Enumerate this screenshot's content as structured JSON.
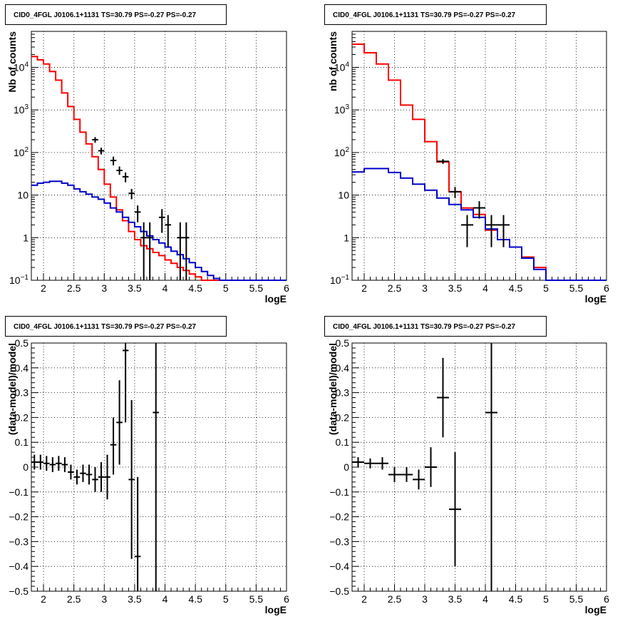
{
  "chart_data": [
    {
      "type": "line",
      "title": "CID0_4FGL J0106.1+1131 TS=30.79 PS=-0.27 PS=-0.27",
      "xlabel": "logE",
      "ylabel": "Nb of counts",
      "xlim": [
        1.8,
        6
      ],
      "ylim": [
        0.1,
        70000
      ],
      "yscale": "log",
      "grid": true,
      "xticks": [
        "2",
        "2.5",
        "3",
        "3.5",
        "4",
        "4.5",
        "5",
        "5.5",
        "6"
      ],
      "yticks": [
        "10^-1",
        "1",
        "10",
        "10^2",
        "10^3",
        "10^4"
      ],
      "series": [
        {
          "color": "#ff0000",
          "style": "step",
          "edges": [
            1.8,
            1.9,
            2.0,
            2.1,
            2.2,
            2.3,
            2.4,
            2.5,
            2.6,
            2.7,
            2.8,
            2.9,
            3.0,
            3.1,
            3.2,
            3.3,
            3.4,
            3.5,
            3.6,
            3.7,
            3.8,
            3.9,
            4.0,
            4.1,
            4.2,
            4.3,
            4.4,
            4.5,
            4.6,
            4.7,
            4.8,
            4.9,
            5.0,
            5.1,
            5.2,
            5.3,
            5.4,
            5.5,
            5.6,
            5.7,
            5.8,
            5.9,
            6.0
          ],
          "values": [
            18000,
            15000,
            12000,
            8000,
            5000,
            2500,
            1200,
            600,
            300,
            160,
            80,
            40,
            18,
            9,
            4.5,
            2.5,
            1.4,
            0.9,
            0.65,
            0.55,
            0.45,
            0.38,
            0.3,
            0.25,
            0.2,
            0.17,
            0.14,
            0.12,
            0.1,
            0.1,
            0.1,
            0.1,
            0.1,
            0.1,
            0.1,
            0.1,
            0.1,
            0.1,
            0.1,
            0.1,
            0.1,
            0.1
          ]
        },
        {
          "color": "#0000cc",
          "style": "step",
          "edges": [
            1.8,
            1.9,
            2.0,
            2.1,
            2.2,
            2.3,
            2.4,
            2.5,
            2.6,
            2.7,
            2.8,
            2.9,
            3.0,
            3.1,
            3.2,
            3.3,
            3.4,
            3.5,
            3.6,
            3.7,
            3.8,
            3.9,
            4.0,
            4.1,
            4.2,
            4.3,
            4.4,
            4.5,
            4.6,
            4.7,
            4.8,
            4.9,
            5.0,
            5.1,
            5.2,
            5.3,
            5.4,
            5.5,
            5.6,
            5.7,
            5.8,
            5.9,
            6.0
          ],
          "values": [
            17,
            19,
            20,
            21,
            21,
            19,
            17,
            14,
            12,
            10.5,
            9,
            8,
            6.5,
            5,
            4,
            3,
            2.3,
            1.8,
            1.4,
            1.1,
            0.9,
            0.75,
            0.6,
            0.48,
            0.4,
            0.32,
            0.26,
            0.2,
            0.16,
            0.13,
            0.11,
            0.1,
            0.1,
            0.1,
            0.1,
            0.1,
            0.1,
            0.1,
            0.1,
            0.1,
            0.1,
            0.1
          ]
        },
        {
          "color": "#000000",
          "style": "errorbar",
          "points": [
            {
              "x": 2.85,
              "y": 200,
              "xerr": 0.05,
              "ylo": 170,
              "yhi": 230
            },
            {
              "x": 2.95,
              "y": 110,
              "xerr": 0.05,
              "ylo": 90,
              "yhi": 130
            },
            {
              "x": 3.15,
              "y": 65,
              "xerr": 0.05,
              "ylo": 50,
              "yhi": 80
            },
            {
              "x": 3.25,
              "y": 38,
              "xerr": 0.05,
              "ylo": 30,
              "yhi": 47
            },
            {
              "x": 3.35,
              "y": 27,
              "xerr": 0.05,
              "ylo": 20,
              "yhi": 34
            },
            {
              "x": 3.45,
              "y": 11,
              "xerr": 0.05,
              "ylo": 8,
              "yhi": 14
            },
            {
              "x": 3.55,
              "y": 4,
              "xerr": 0.05,
              "ylo": 2.3,
              "yhi": 5.7
            },
            {
              "x": 3.65,
              "y": 1,
              "xerr": 0.05,
              "ylo": 0.1,
              "yhi": 2.3
            },
            {
              "x": 3.75,
              "y": 1,
              "xerr": 0.05,
              "ylo": 0.1,
              "yhi": 2.3
            },
            {
              "x": 3.95,
              "y": 3,
              "xerr": 0.05,
              "ylo": 1.3,
              "yhi": 4.7
            },
            {
              "x": 4.05,
              "y": 2,
              "xerr": 0.05,
              "ylo": 0.6,
              "yhi": 3.4
            },
            {
              "x": 4.25,
              "y": 1,
              "xerr": 0.05,
              "ylo": 0.1,
              "yhi": 2.3
            },
            {
              "x": 4.35,
              "y": 1,
              "xerr": 0.05,
              "ylo": 0.1,
              "yhi": 2.3
            }
          ]
        }
      ]
    },
    {
      "type": "line",
      "title": "CID0_4FGL J0106.1+1131 TS=30.79 PS=-0.27 PS=-0.27",
      "xlabel": "logE",
      "ylabel": "nb of counts",
      "xlim": [
        1.8,
        6
      ],
      "ylim": [
        0.1,
        70000
      ],
      "yscale": "log",
      "grid": true,
      "xticks": [
        "2",
        "2.5",
        "3",
        "3.5",
        "4",
        "4.5",
        "5",
        "5.5",
        "6"
      ],
      "yticks": [
        "10^-1",
        "1",
        "10",
        "10^2",
        "10^3",
        "10^4"
      ],
      "series": [
        {
          "color": "#ff0000",
          "style": "step",
          "edges": [
            1.8,
            2.0,
            2.2,
            2.4,
            2.6,
            2.8,
            3.0,
            3.2,
            3.4,
            3.6,
            3.8,
            4.0,
            4.2,
            4.4,
            4.6,
            4.8,
            5.0,
            5.2,
            5.4,
            5.6,
            5.8,
            6.0
          ],
          "values": [
            35000,
            22000,
            12000,
            5000,
            1300,
            600,
            180,
            60,
            12,
            5,
            3.5,
            1.5,
            0.9,
            0.6,
            0.35,
            0.2,
            0.1,
            0.1,
            0.1,
            0.1,
            0.1
          ]
        },
        {
          "color": "#0000cc",
          "style": "step",
          "edges": [
            1.8,
            2.0,
            2.2,
            2.4,
            2.6,
            2.8,
            3.0,
            3.2,
            3.4,
            3.6,
            3.8,
            4.0,
            4.2,
            4.4,
            4.6,
            4.8,
            5.0,
            5.2,
            5.4,
            5.6,
            5.8,
            6.0
          ],
          "values": [
            35,
            42,
            42,
            34,
            25,
            18,
            13,
            8.5,
            6,
            4.5,
            3,
            1.6,
            0.9,
            0.6,
            0.33,
            0.18,
            0.1,
            0.1,
            0.1,
            0.1,
            0.1
          ]
        },
        {
          "color": "#000000",
          "style": "errorbar",
          "points": [
            {
              "x": 3.3,
              "y": 62,
              "xerr": 0.1,
              "ylo": 54,
              "yhi": 70
            },
            {
              "x": 3.5,
              "y": 12,
              "xerr": 0.1,
              "ylo": 8.5,
              "yhi": 15.5
            },
            {
              "x": 3.7,
              "y": 2,
              "xerr": 0.1,
              "ylo": 0.6,
              "yhi": 3.4
            },
            {
              "x": 3.9,
              "y": 5,
              "xerr": 0.1,
              "ylo": 2.8,
              "yhi": 7.2
            },
            {
              "x": 4.1,
              "y": 2,
              "xerr": 0.1,
              "ylo": 0.6,
              "yhi": 3.4
            },
            {
              "x": 4.3,
              "y": 2,
              "xerr": 0.1,
              "ylo": 0.6,
              "yhi": 3.4
            }
          ]
        }
      ]
    },
    {
      "type": "scatter",
      "title": "CID0_4FGL J0106.1+1131 TS=30.79 PS=-0.27 PS=-0.27",
      "xlabel": "logE",
      "ylabel": "(data-model)/model",
      "xlim": [
        1.8,
        6
      ],
      "ylim": [
        -0.5,
        0.5
      ],
      "grid": true,
      "xticks": [
        "2",
        "2.5",
        "3",
        "3.5",
        "4",
        "4.5",
        "5",
        "5.5",
        "6"
      ],
      "yticks": [
        "−0.5",
        "−0.4",
        "−0.3",
        "−0.2",
        "−0.1",
        "0",
        "0.1",
        "0.2",
        "0.3",
        "0.4",
        "0.5"
      ],
      "series": [
        {
          "color": "#000000",
          "style": "errorbar",
          "points": [
            {
              "x": 1.85,
              "y": 0.02,
              "xerr": 0.05,
              "ylo": -0.01,
              "yhi": 0.05
            },
            {
              "x": 1.95,
              "y": 0.02,
              "xerr": 0.05,
              "ylo": -0.01,
              "yhi": 0.05
            },
            {
              "x": 2.05,
              "y": 0.015,
              "xerr": 0.05,
              "ylo": -0.015,
              "yhi": 0.045
            },
            {
              "x": 2.15,
              "y": 0.01,
              "xerr": 0.05,
              "ylo": -0.02,
              "yhi": 0.04
            },
            {
              "x": 2.25,
              "y": 0.015,
              "xerr": 0.05,
              "ylo": -0.015,
              "yhi": 0.045
            },
            {
              "x": 2.35,
              "y": 0.01,
              "xerr": 0.05,
              "ylo": -0.02,
              "yhi": 0.04
            },
            {
              "x": 2.45,
              "y": -0.02,
              "xerr": 0.05,
              "ylo": -0.05,
              "yhi": 0.01
            },
            {
              "x": 2.55,
              "y": -0.04,
              "xerr": 0.05,
              "ylo": -0.07,
              "yhi": -0.01
            },
            {
              "x": 2.65,
              "y": -0.025,
              "xerr": 0.05,
              "ylo": -0.06,
              "yhi": 0.01
            },
            {
              "x": 2.75,
              "y": -0.03,
              "xerr": 0.05,
              "ylo": -0.07,
              "yhi": 0.01
            },
            {
              "x": 2.85,
              "y": -0.05,
              "xerr": 0.05,
              "ylo": -0.1,
              "yhi": 0.0
            },
            {
              "x": 2.95,
              "y": -0.04,
              "xerr": 0.05,
              "ylo": -0.1,
              "yhi": 0.02
            },
            {
              "x": 3.05,
              "y": -0.04,
              "xerr": 0.05,
              "ylo": -0.13,
              "yhi": 0.05
            },
            {
              "x": 3.15,
              "y": 0.09,
              "xerr": 0.05,
              "ylo": -0.03,
              "yhi": 0.2
            },
            {
              "x": 3.25,
              "y": 0.18,
              "xerr": 0.05,
              "ylo": 0.01,
              "yhi": 0.35
            },
            {
              "x": 3.35,
              "y": 0.47,
              "xerr": 0.05,
              "ylo": 0.18,
              "yhi": 0.5
            },
            {
              "x": 3.45,
              "y": -0.05,
              "xerr": 0.05,
              "ylo": -0.37,
              "yhi": 0.27
            },
            {
              "x": 3.55,
              "y": -0.36,
              "xerr": 0.05,
              "ylo": -0.5,
              "yhi": -0.04
            },
            {
              "x": 3.85,
              "y": 0.22,
              "xerr": 0.05,
              "ylo": -0.5,
              "yhi": 0.5
            }
          ]
        }
      ]
    },
    {
      "type": "scatter",
      "title": "CID0_4FGL J0106.1+1131 TS=30.79 PS=-0.27 PS=-0.27",
      "xlabel": "logE",
      "ylabel": "(data-model)/model",
      "xlim": [
        1.8,
        6
      ],
      "ylim": [
        -0.5,
        0.5
      ],
      "grid": true,
      "xticks": [
        "2",
        "2.5",
        "3",
        "3.5",
        "4",
        "4.5",
        "5",
        "5.5",
        "6"
      ],
      "yticks": [
        "−0.5",
        "−0.4",
        "−0.3",
        "−0.2",
        "−0.1",
        "0",
        "0.1",
        "0.2",
        "0.3",
        "0.4",
        "0.5"
      ],
      "series": [
        {
          "color": "#000000",
          "style": "errorbar",
          "points": [
            {
              "x": 1.9,
              "y": 0.02,
              "xerr": 0.1,
              "ylo": 0.0,
              "yhi": 0.04
            },
            {
              "x": 2.1,
              "y": 0.015,
              "xerr": 0.1,
              "ylo": -0.005,
              "yhi": 0.035
            },
            {
              "x": 2.3,
              "y": 0.015,
              "xerr": 0.1,
              "ylo": -0.01,
              "yhi": 0.04
            },
            {
              "x": 2.5,
              "y": -0.03,
              "xerr": 0.1,
              "ylo": -0.06,
              "yhi": 0.0
            },
            {
              "x": 2.7,
              "y": -0.03,
              "xerr": 0.1,
              "ylo": -0.06,
              "yhi": 0.0
            },
            {
              "x": 2.9,
              "y": -0.05,
              "xerr": 0.1,
              "ylo": -0.09,
              "yhi": -0.01
            },
            {
              "x": 3.1,
              "y": 0.0,
              "xerr": 0.1,
              "ylo": -0.08,
              "yhi": 0.08
            },
            {
              "x": 3.3,
              "y": 0.28,
              "xerr": 0.1,
              "ylo": 0.12,
              "yhi": 0.44
            },
            {
              "x": 3.5,
              "y": -0.17,
              "xerr": 0.1,
              "ylo": -0.4,
              "yhi": 0.06
            },
            {
              "x": 4.1,
              "y": 0.22,
              "xerr": 0.1,
              "ylo": -0.5,
              "yhi": 0.5
            }
          ]
        }
      ]
    }
  ]
}
